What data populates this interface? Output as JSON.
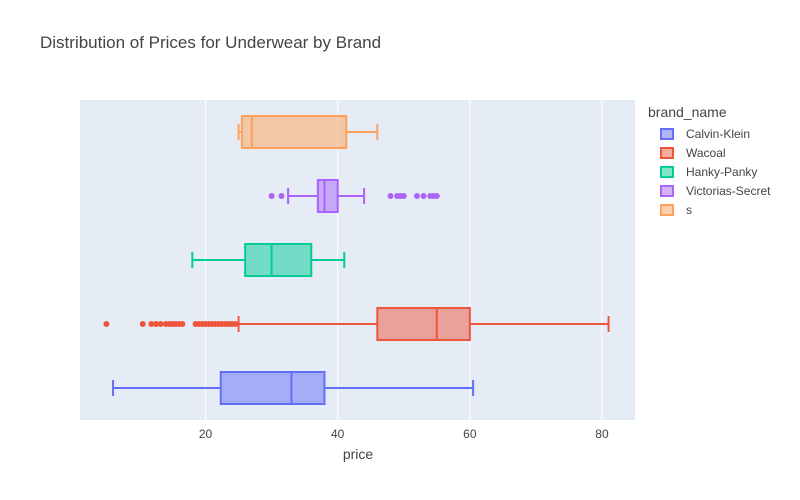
{
  "chart_data": {
    "type": "box",
    "orientation": "horizontal",
    "title": "Distribution of Prices for Underwear by Brand",
    "xlabel": "price",
    "ylabel": "",
    "xlim": [
      1,
      85
    ],
    "xticks": [
      20,
      40,
      60,
      80
    ],
    "grid": true,
    "legend_title": "brand_name",
    "legend_position": "top-right",
    "series": [
      {
        "name": "Calvin-Klein",
        "color": "#636efa",
        "whisker_low": 6,
        "q1": 22.3,
        "median": 33,
        "q3": 38,
        "whisker_high": 60.5,
        "outliers": []
      },
      {
        "name": "Wacoal",
        "color": "#ef553b",
        "whisker_low": 25,
        "q1": 46,
        "median": 55,
        "q3": 60,
        "whisker_high": 81,
        "outliers": [
          5,
          10.5,
          11.8,
          12.5,
          13.2,
          14,
          14.5,
          15,
          15.5,
          16,
          16.5,
          18.5,
          19,
          19.5,
          20,
          20.5,
          21,
          21.5,
          22,
          22.5,
          23,
          23.5,
          24,
          24.5
        ]
      },
      {
        "name": "Hanky-Panky",
        "color": "#00cc96",
        "whisker_low": 18,
        "q1": 26,
        "median": 30,
        "q3": 36,
        "whisker_high": 41,
        "outliers": []
      },
      {
        "name": "Victorias-Secret",
        "color": "#ab63fa",
        "whisker_low": 32.5,
        "q1": 37,
        "median": 38,
        "q3": 40,
        "whisker_high": 44,
        "outliers": [
          30,
          31.5,
          48,
          49,
          49.5,
          50,
          52,
          53,
          54,
          54.5,
          55
        ]
      },
      {
        "name": "s",
        "color": "#ffa15a",
        "whisker_low": 25,
        "q1": 25.5,
        "median": 27,
        "q3": 41.3,
        "whisker_high": 46,
        "outliers": []
      }
    ]
  }
}
